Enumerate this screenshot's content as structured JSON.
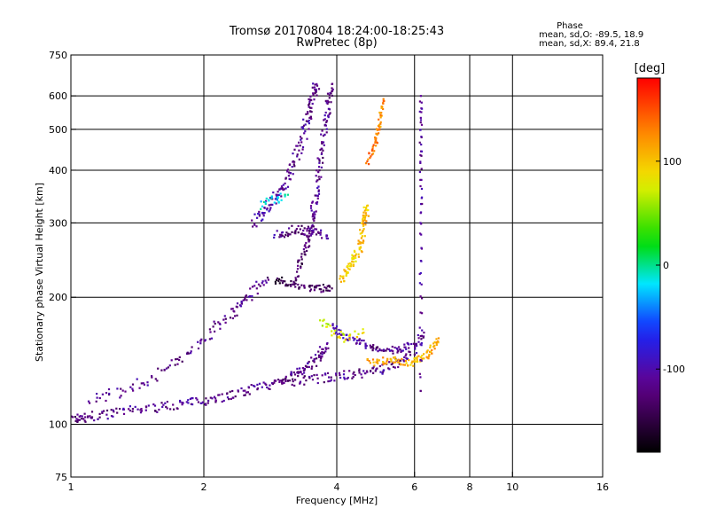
{
  "chart_data": {
    "type": "scatter",
    "title": "Tromsø 20170804 18:24:00-18:25:43",
    "subtitle": "RwPretec (8p)",
    "xlabel": "Frequency [MHz]",
    "ylabel": "Stationary phase Virtual Height [km]",
    "x_scale": "log",
    "y_scale": "log",
    "xlim": [
      1,
      16
    ],
    "ylim": [
      75,
      750
    ],
    "x_ticks": [
      1,
      2,
      4,
      6,
      8,
      10,
      16
    ],
    "y_ticks": [
      75,
      100,
      200,
      300,
      400,
      500,
      600,
      750
    ],
    "grid": true,
    "phase_stats": {
      "title": "Phase",
      "line_o": "mean, sd,O: -89.5, 18.9",
      "line_x": "mean, sd,X: 89.4, 21.8"
    },
    "colorbar": {
      "label": "[deg]",
      "range": [
        -180,
        180
      ],
      "ticks": [
        100,
        0,
        -100
      ]
    },
    "traces": [
      {
        "points": [
          [
            1.0,
            103,
            -130
          ],
          [
            1.1,
            104,
            -120
          ],
          [
            1.3,
            107,
            -110
          ],
          [
            1.6,
            110,
            -120
          ],
          [
            1.9,
            113,
            -110
          ],
          [
            2.2,
            116,
            -120
          ],
          [
            2.6,
            121,
            -110
          ],
          [
            3.0,
            127,
            -120
          ],
          [
            3.3,
            133,
            -110
          ],
          [
            3.6,
            142,
            -120
          ],
          [
            3.8,
            155,
            -110
          ]
        ],
        "spread": 0.05,
        "n": 12
      },
      {
        "points": [
          [
            1.1,
            113,
            -120
          ],
          [
            1.4,
            123,
            -110
          ],
          [
            1.7,
            138,
            -120
          ],
          [
            2.0,
            160,
            -110
          ],
          [
            2.3,
            183,
            -120
          ],
          [
            2.5,
            200,
            -110
          ],
          [
            2.8,
            220,
            -120
          ]
        ],
        "spread": 0.06,
        "n": 10
      },
      {
        "points": [
          [
            2.6,
            300,
            -110
          ],
          [
            2.8,
            330,
            -100
          ],
          [
            3.0,
            360,
            -110
          ],
          [
            3.2,
            420,
            -120
          ],
          [
            3.4,
            500,
            -110
          ],
          [
            3.5,
            580,
            -120
          ],
          [
            3.6,
            640,
            -110
          ]
        ],
        "spread": 0.06,
        "n": 12
      },
      {
        "points": [
          [
            3.2,
            220,
            -140
          ],
          [
            3.4,
            260,
            -130
          ],
          [
            3.5,
            300,
            -120
          ],
          [
            3.6,
            360,
            -110
          ],
          [
            3.7,
            450,
            -120
          ],
          [
            3.8,
            540,
            -110
          ],
          [
            3.9,
            640,
            -120
          ]
        ],
        "spread": 0.05,
        "n": 12
      },
      {
        "points": [
          [
            2.9,
            280,
            -110
          ],
          [
            3.2,
            290,
            -130
          ],
          [
            3.5,
            285,
            -120
          ],
          [
            3.8,
            280,
            -110
          ]
        ],
        "spread": 0.05,
        "n": 10
      },
      {
        "points": [
          [
            2.9,
            220,
            -150
          ],
          [
            3.2,
            215,
            -140
          ],
          [
            3.6,
            210,
            -130
          ],
          [
            3.9,
            210,
            -140
          ]
        ],
        "spread": 0.04,
        "n": 10
      },
      {
        "points": [
          [
            3.9,
            170,
            -110
          ],
          [
            4.2,
            160,
            -100
          ],
          [
            4.6,
            155,
            -110
          ],
          [
            5.0,
            150,
            -120
          ],
          [
            5.5,
            150,
            -110
          ],
          [
            5.9,
            155,
            -100
          ]
        ],
        "spread": 0.04,
        "n": 9
      },
      {
        "points": [
          [
            3.0,
            125,
            -130
          ],
          [
            3.5,
            128,
            -120
          ],
          [
            4.0,
            130,
            -110
          ],
          [
            4.5,
            132,
            -120
          ],
          [
            5.0,
            135,
            -110
          ],
          [
            5.5,
            140,
            -120
          ],
          [
            6.0,
            150,
            -110
          ],
          [
            6.3,
            165,
            -120
          ]
        ],
        "spread": 0.05,
        "n": 9
      },
      {
        "points": [
          [
            4.1,
            220,
            100
          ],
          [
            4.3,
            240,
            90
          ],
          [
            4.5,
            260,
            100
          ],
          [
            4.6,
            300,
            110
          ],
          [
            4.7,
            330,
            100
          ]
        ],
        "spread": 0.05,
        "n": 12
      },
      {
        "points": [
          [
            4.7,
            420,
            130
          ],
          [
            4.9,
            470,
            140
          ],
          [
            5.0,
            520,
            120
          ],
          [
            5.1,
            590,
            130
          ]
        ],
        "spread": 0.03,
        "n": 10
      },
      {
        "points": [
          [
            4.7,
            140,
            115
          ],
          [
            5.3,
            142,
            110
          ],
          [
            5.9,
            140,
            100
          ],
          [
            6.4,
            145,
            110
          ],
          [
            6.8,
            160,
            120
          ]
        ],
        "spread": 0.04,
        "n": 12
      },
      {
        "points": [
          [
            3.7,
            175,
            60
          ],
          [
            4.1,
            160,
            80
          ],
          [
            4.6,
            165,
            90
          ]
        ],
        "spread": 0.05,
        "n": 8
      },
      {
        "points": [
          [
            2.7,
            330,
            -10
          ],
          [
            2.9,
            340,
            -20
          ],
          [
            3.1,
            350,
            0
          ]
        ],
        "spread": 0.05,
        "n": 6
      },
      {
        "points": [
          [
            6.2,
            120,
            -110
          ],
          [
            6.2,
            200,
            -110
          ],
          [
            6.2,
            300,
            -110
          ],
          [
            6.2,
            400,
            -110
          ],
          [
            6.2,
            500,
            -110
          ],
          [
            6.2,
            600,
            -110
          ]
        ],
        "spread": 0.02,
        "n": 6
      }
    ]
  }
}
